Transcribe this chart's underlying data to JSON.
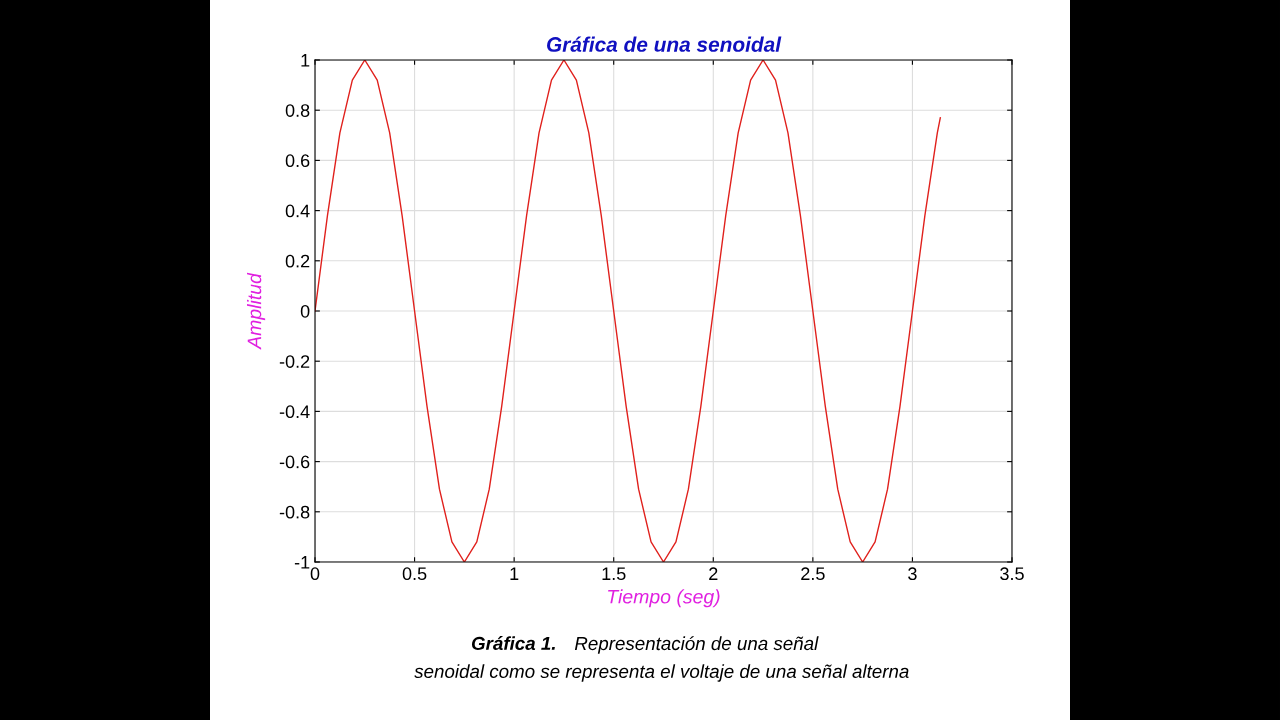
{
  "chart_data": {
    "type": "line",
    "title": "Gráfica de una senoidal",
    "xlabel": "Tiempo (seg)",
    "ylabel": "Amplitud",
    "x": [
      0,
      0.0625,
      0.125,
      0.1875,
      0.25,
      0.3125,
      0.375,
      0.4375,
      0.5,
      0.5625,
      0.625,
      0.6875,
      0.75,
      0.8125,
      0.875,
      0.9375,
      1,
      1.0625,
      1.125,
      1.1875,
      1.25,
      1.3125,
      1.375,
      1.4375,
      1.5,
      1.5625,
      1.625,
      1.6875,
      1.75,
      1.8125,
      1.875,
      1.9375,
      2,
      2.0625,
      2.125,
      2.1875,
      2.25,
      2.3125,
      2.375,
      2.4375,
      2.5,
      2.5625,
      2.625,
      2.6875,
      2.75,
      2.8125,
      2.875,
      2.9375,
      3,
      3.0625,
      3.125,
      3.14
    ],
    "series": [
      {
        "color": "#e0201c",
        "values": [
          0,
          0.38,
          0.71,
          0.92,
          1,
          0.92,
          0.71,
          0.38,
          0,
          -0.38,
          -0.71,
          -0.92,
          -1,
          -0.92,
          -0.71,
          -0.38,
          0,
          0.38,
          0.71,
          0.92,
          1,
          0.92,
          0.71,
          0.38,
          0,
          -0.38,
          -0.71,
          -0.92,
          -1,
          -0.92,
          -0.71,
          -0.38,
          0,
          0.38,
          0.71,
          0.92,
          1,
          0.92,
          0.71,
          0.38,
          0,
          -0.38,
          -0.71,
          -0.92,
          -1,
          -0.92,
          -0.71,
          -0.38,
          0,
          0.38,
          0.71,
          0.77
        ]
      }
    ],
    "xlim": [
      0,
      3.5
    ],
    "ylim": [
      -1,
      1
    ],
    "xticks": [
      0,
      0.5,
      1,
      1.5,
      2,
      2.5,
      3,
      3.5
    ],
    "yticks": [
      -1,
      -0.8,
      -0.6,
      -0.4,
      -0.2,
      0,
      0.2,
      0.4,
      0.6,
      0.8,
      1
    ],
    "grid": true,
    "legend": false,
    "marker": "none",
    "line_style": "solid",
    "annotations": [
      "Gráfica 1.",
      "Representación de una señal",
      "senoidal como se representa el voltaje de una señal alterna"
    ]
  }
}
